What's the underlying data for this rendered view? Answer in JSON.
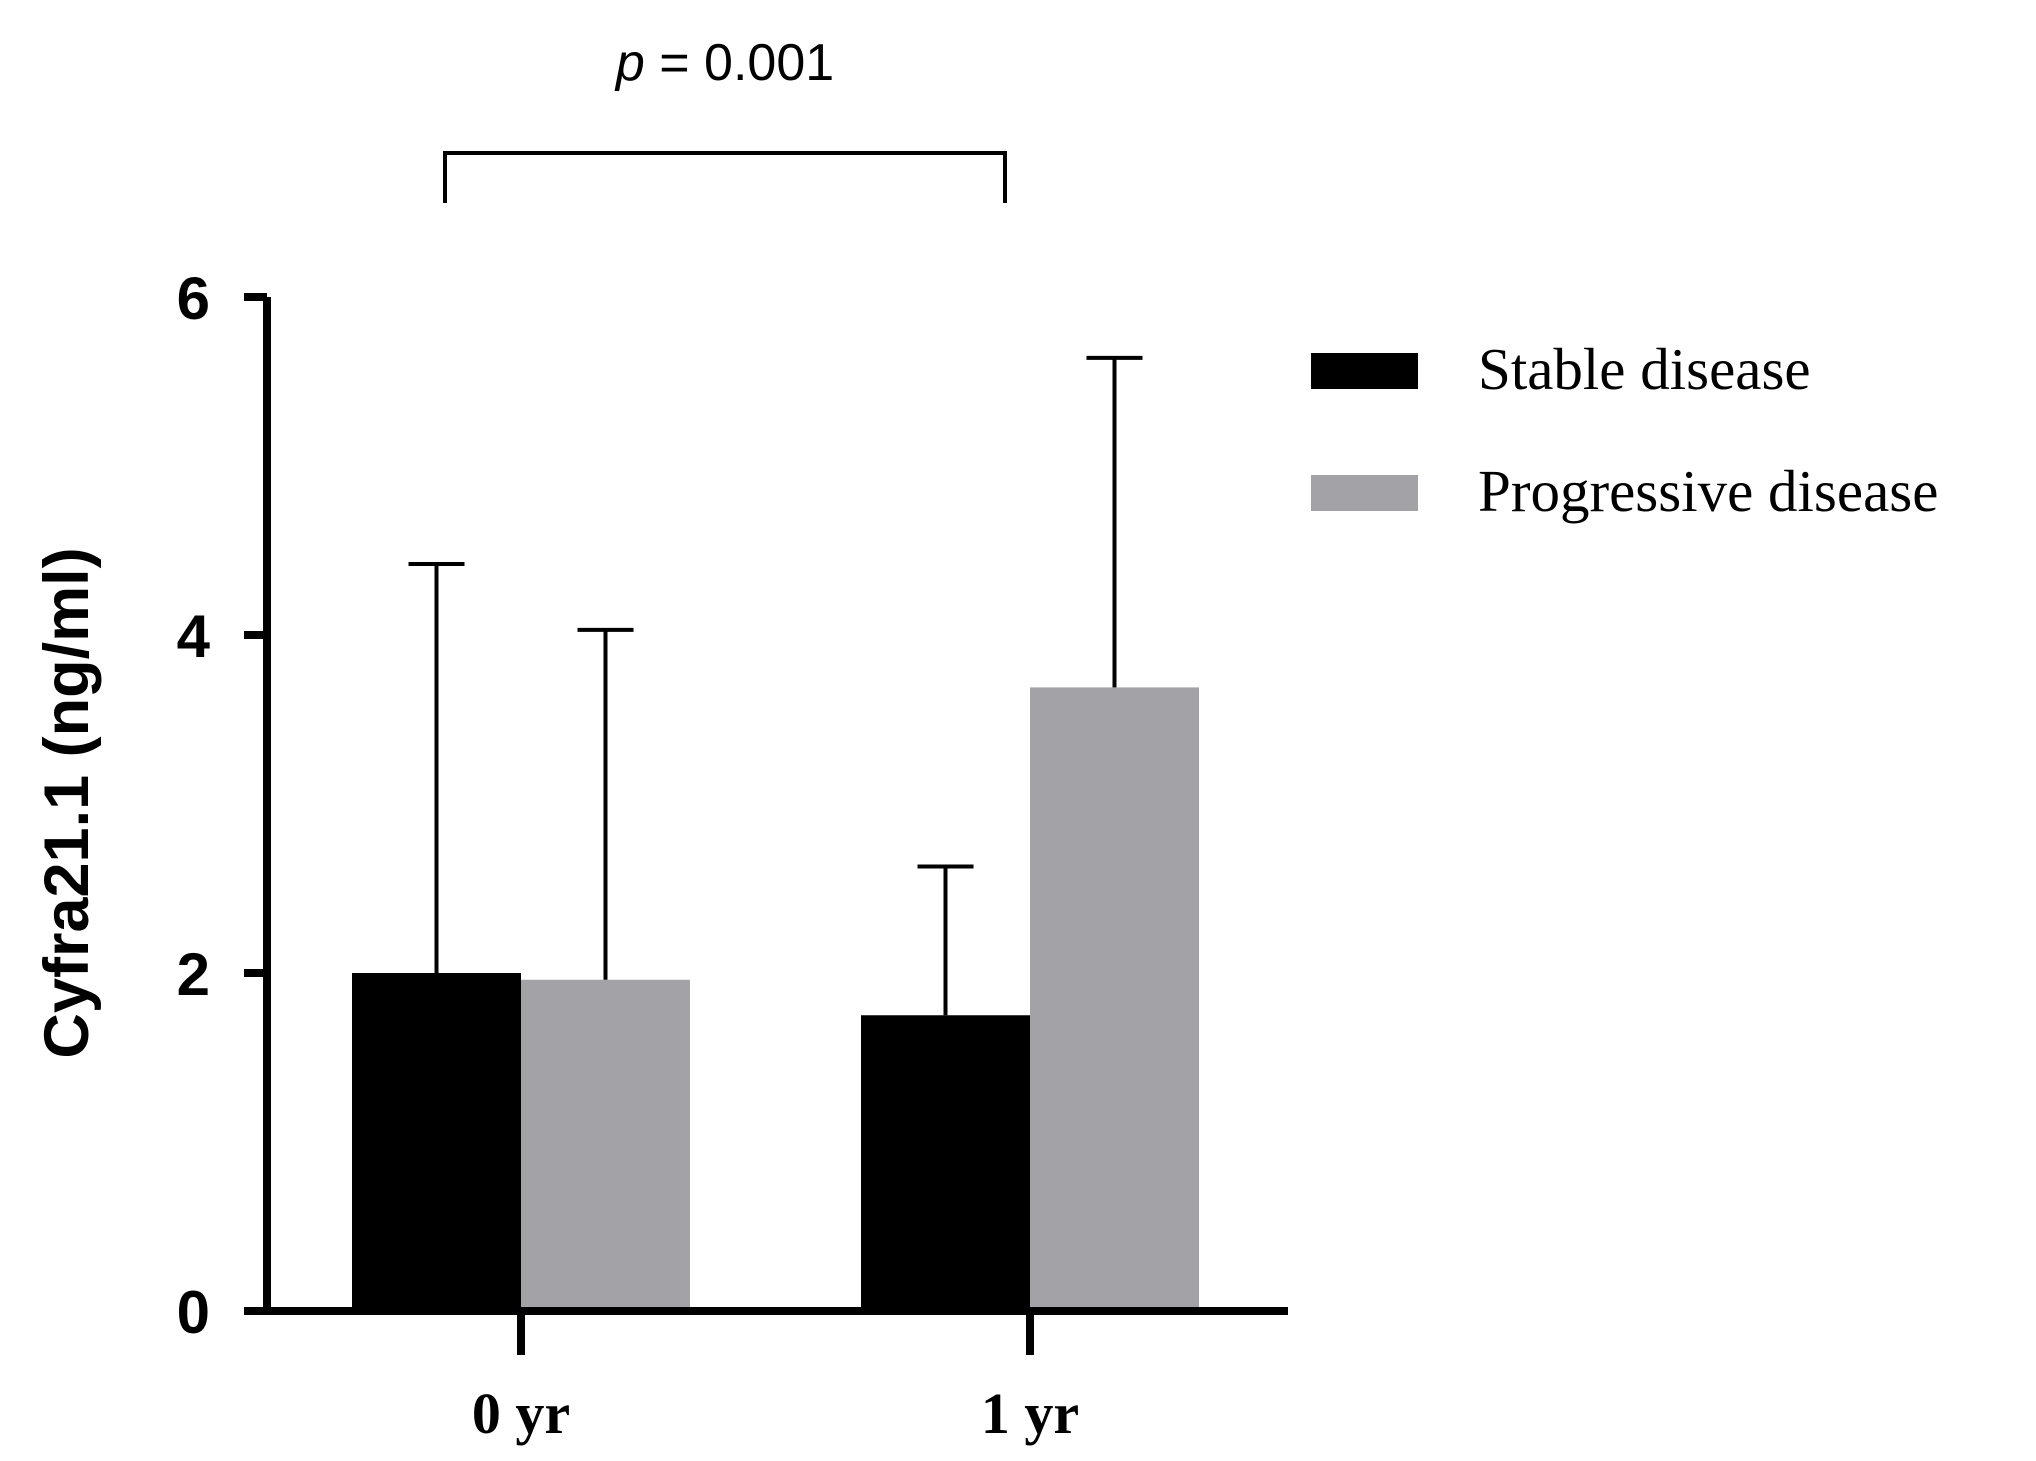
{
  "chart_data": {
    "type": "bar",
    "categories": [
      "0 yr",
      "1 yr"
    ],
    "series": [
      {
        "name": "Stable disease",
        "color": "#000000",
        "values": [
          2.0,
          1.75
        ],
        "error_upper": [
          4.42,
          2.63
        ]
      },
      {
        "name": "Progressive disease",
        "color": "#a3a2a6",
        "values": [
          1.96,
          3.69
        ],
        "error_upper": [
          4.03,
          5.64
        ]
      }
    ],
    "ylabel": "Cyfra21.1 (ng/ml)",
    "xlabel": "",
    "ylim": [
      0,
      6
    ],
    "yticks": [
      0,
      2,
      4,
      6
    ],
    "grid": false,
    "legend_position": "top-right",
    "annotation": {
      "p_symbol": "p",
      "p_rest": " = 0.001",
      "from_category": "0 yr",
      "to_category": "1 yr"
    }
  }
}
